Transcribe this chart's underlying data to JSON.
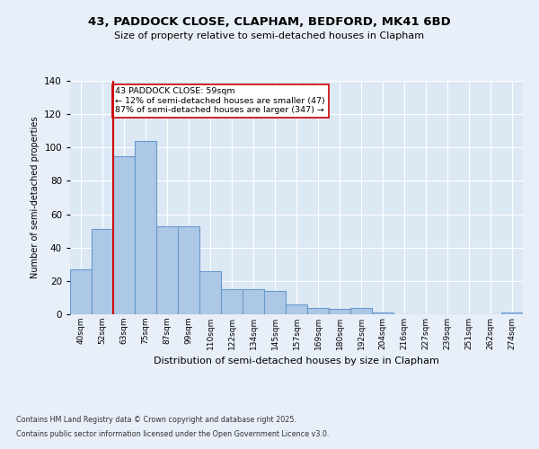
{
  "title1": "43, PADDOCK CLOSE, CLAPHAM, BEDFORD, MK41 6BD",
  "title2": "Size of property relative to semi-detached houses in Clapham",
  "xlabel": "Distribution of semi-detached houses by size in Clapham",
  "ylabel": "Number of semi-detached properties",
  "categories": [
    "40sqm",
    "52sqm",
    "63sqm",
    "75sqm",
    "87sqm",
    "99sqm",
    "110sqm",
    "122sqm",
    "134sqm",
    "145sqm",
    "157sqm",
    "169sqm",
    "180sqm",
    "192sqm",
    "204sqm",
    "216sqm",
    "227sqm",
    "239sqm",
    "251sqm",
    "262sqm",
    "274sqm"
  ],
  "values": [
    27,
    51,
    95,
    104,
    53,
    53,
    26,
    15,
    15,
    14,
    6,
    4,
    3,
    4,
    1,
    0,
    0,
    0,
    0,
    0,
    1
  ],
  "bar_color": "#adc8e6",
  "bar_edge_color": "#6699cc",
  "vline_x": 1.5,
  "vline_color": "#cc0000",
  "annotation_title": "43 PADDOCK CLOSE: 59sqm",
  "annotation_line1": "← 12% of semi-detached houses are smaller (47)",
  "annotation_line2": "87% of semi-detached houses are larger (347) →",
  "annotation_box_color": "#ffffff",
  "annotation_box_edge": "#cc0000",
  "footnote1": "Contains HM Land Registry data © Crown copyright and database right 2025.",
  "footnote2": "Contains public sector information licensed under the Open Government Licence v3.0.",
  "bg_color": "#dde8f5",
  "fig_bg_color": "#e8eff8",
  "ylim": [
    0,
    140
  ],
  "yticks": [
    0,
    20,
    40,
    60,
    80,
    100,
    120,
    140
  ]
}
